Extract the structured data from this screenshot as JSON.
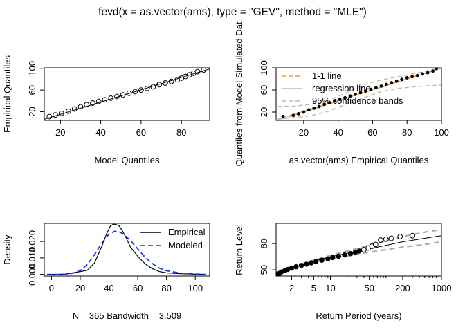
{
  "figure_title": "fevd(x = as.vector(ams), type = \"GEV\", method = \"MLE\")",
  "chart_data": [
    {
      "type": "scatter",
      "name": "qq-model",
      "title": "",
      "xlabel": "Model Quantiles",
      "ylabel": "Empirical Quantiles",
      "xlim": [
        12,
        94
      ],
      "ylim": [
        4,
        101
      ],
      "xticks": [
        20,
        40,
        60,
        80
      ],
      "yticks": [
        20,
        60,
        100
      ],
      "points": {
        "model": [
          14.5,
          17.5,
          20.5,
          24,
          27,
          30,
          33,
          36,
          39,
          42,
          45,
          48,
          51,
          54,
          57,
          60,
          63,
          66,
          69,
          72,
          75,
          78,
          80,
          82,
          84,
          86,
          88,
          91
        ],
        "empirical": [
          11,
          14,
          17,
          21,
          25,
          29,
          33,
          36,
          39,
          42,
          45,
          48,
          51,
          54,
          57,
          60,
          63,
          66,
          70,
          73,
          76,
          79,
          82,
          85,
          88,
          91,
          94,
          97
        ]
      },
      "reference_line": {
        "x": [
          12,
          94
        ],
        "y": [
          6,
          99
        ]
      }
    },
    {
      "type": "scatter",
      "name": "qq-simulated",
      "xlabel": "as.vector(ams) Empirical Quantiles",
      "ylabel": "Quantiles from Model Simulated Dat",
      "xlim": [
        4,
        100
      ],
      "ylim": [
        5,
        100
      ],
      "xticks": [
        20,
        40,
        60,
        80,
        100
      ],
      "yticks": [
        20,
        60,
        100
      ],
      "points": {
        "empirical": [
          8,
          14,
          17,
          20,
          23,
          26,
          29,
          32,
          35,
          38,
          41,
          44,
          47,
          50,
          53,
          56,
          59,
          62,
          65,
          68,
          71,
          74,
          77,
          80,
          83,
          86,
          89,
          92,
          95,
          97
        ],
        "simulated": [
          12,
          14,
          17,
          20,
          24,
          27,
          30,
          34,
          37,
          40,
          43,
          46,
          49,
          52,
          55,
          58,
          61,
          64,
          67,
          70,
          73,
          76,
          79,
          82,
          84,
          86,
          89,
          91,
          94,
          99
        ]
      },
      "line_1to1": {
        "x": [
          4,
          100
        ],
        "y": [
          4,
          100
        ]
      },
      "regression_line": {
        "x": [
          4,
          100
        ],
        "y": [
          6,
          99
        ]
      },
      "band_upper": {
        "x": [
          5,
          15,
          25,
          35,
          45,
          55,
          65,
          75,
          85,
          95,
          100
        ],
        "y": [
          30,
          31,
          34,
          42,
          55,
          70,
          78,
          84,
          90,
          97,
          99
        ]
      },
      "band_lower": {
        "x": [
          5,
          15,
          25,
          35,
          45,
          55,
          65,
          75,
          85,
          95,
          100
        ],
        "y": [
          7,
          10,
          14,
          22,
          35,
          46,
          57,
          63,
          66,
          68,
          69
        ]
      },
      "legend": {
        "position": "top-left",
        "entries": [
          "1-1 line",
          "regression line",
          "95% confidence bands"
        ]
      },
      "colors": {
        "one_to_one": "#ff9933",
        "regression": "#bbbbbb",
        "bands": "#bbbbbb"
      }
    },
    {
      "type": "line",
      "name": "density",
      "ylabel": "Density",
      "xlabel": "N = 365   Bandwidth = 3.509",
      "xlim": [
        -5,
        110
      ],
      "ylim": [
        -0.001,
        0.031
      ],
      "xticks": [
        0,
        20,
        40,
        60,
        80,
        100
      ],
      "yticks": [
        0.0,
        0.01,
        0.02
      ],
      "ytick_labels": [
        "0.000",
        "0.010",
        "0.020"
      ],
      "series": [
        {
          "name": "Empirical",
          "color": "#000000",
          "dash": "solid",
          "x": [
            -3,
            5,
            10,
            15,
            20,
            25,
            30,
            35,
            38,
            41,
            43,
            45,
            47,
            49,
            52,
            55,
            60,
            65,
            70,
            75,
            80,
            90,
            100,
            107
          ],
          "y": [
            0,
            0,
            0.0002,
            0.001,
            0.0017,
            0.0025,
            0.007,
            0.017,
            0.024,
            0.0295,
            0.0305,
            0.0303,
            0.0295,
            0.027,
            0.022,
            0.0165,
            0.011,
            0.0065,
            0.0035,
            0.0017,
            0.0009,
            0.0004,
            0.0001,
            0
          ]
        },
        {
          "name": "Modeled",
          "color": "#2030e0",
          "dash": "dashed",
          "x": [
            -3,
            5,
            10,
            15,
            20,
            25,
            30,
            35,
            40,
            44,
            47,
            50,
            55,
            60,
            65,
            70,
            75,
            80,
            90,
            100,
            107
          ],
          "y": [
            0,
            0,
            0.0001,
            0.0007,
            0.0023,
            0.006,
            0.012,
            0.019,
            0.0245,
            0.0262,
            0.026,
            0.0245,
            0.0205,
            0.0155,
            0.0105,
            0.0066,
            0.0038,
            0.0022,
            0.0007,
            0.0002,
            0
          ]
        }
      ],
      "legend": {
        "position": "top-right",
        "entries": [
          "Empirical",
          "Modeled"
        ]
      }
    },
    {
      "type": "scatter",
      "name": "return-level",
      "ylabel": "Return Level",
      "xlabel": "Return Period (years)",
      "xscale": "log",
      "xlim": [
        1.05,
        1000
      ],
      "ylim": [
        43,
        103
      ],
      "xticks": [
        2,
        5,
        10,
        50,
        200,
        1000
      ],
      "xtick_labels": [
        "2",
        "5",
        "10",
        "50",
        "200",
        "1000"
      ],
      "yticks": [
        50,
        80
      ],
      "points": {
        "period": [
          1.1,
          1.2,
          1.3,
          1.5,
          1.7,
          2,
          2.4,
          3,
          3.7,
          4.5,
          5.5,
          7,
          9,
          11,
          14,
          18,
          23,
          28,
          33,
          40,
          48,
          56,
          65,
          80,
          100,
          125,
          180,
          300
        ],
        "level": [
          45,
          46,
          47.5,
          49,
          50.5,
          52,
          53.5,
          55,
          56.5,
          58,
          59.5,
          61,
          62.5,
          64,
          65.5,
          67,
          68.5,
          70,
          71.5,
          73,
          75,
          77,
          79,
          84,
          85,
          86,
          88,
          89
        ]
      },
      "open_point_threshold_period": 40,
      "fit_line": {
        "period": [
          1.05,
          2,
          5,
          10,
          50,
          100,
          200,
          500,
          1000
        ],
        "level": [
          44,
          52,
          60,
          65,
          74,
          78,
          82,
          86,
          89
        ]
      },
      "ci_upper": {
        "period": [
          1.05,
          2,
          5,
          10,
          50,
          100,
          200,
          500,
          1000
        ],
        "level": [
          45,
          53,
          61,
          66.5,
          78,
          83,
          88,
          93,
          96
        ]
      },
      "ci_lower": {
        "period": [
          1.05,
          2,
          5,
          10,
          50,
          100,
          200,
          500,
          1000
        ],
        "level": [
          43,
          51,
          58.5,
          63,
          70,
          73,
          76,
          79,
          82
        ]
      }
    }
  ]
}
